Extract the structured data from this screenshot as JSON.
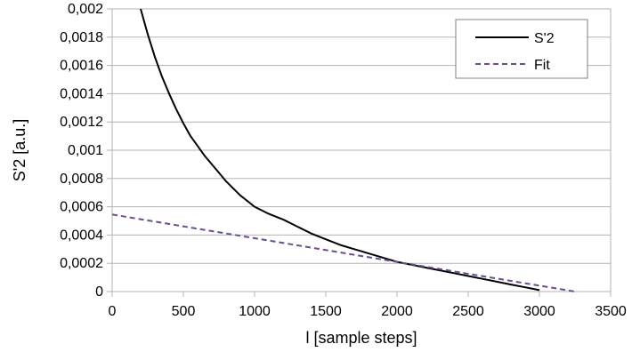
{
  "chart_data": {
    "type": "line",
    "xlabel": "l [sample steps]",
    "ylabel": "S'2 [a.u.]",
    "xlim": [
      0,
      3500
    ],
    "ylim": [
      0,
      0.002
    ],
    "x_ticks": [
      0,
      500,
      1000,
      1500,
      2000,
      2500,
      3000,
      3500
    ],
    "y_ticks": [
      0,
      0.0002,
      0.0004,
      0.0006,
      0.0008,
      0.001,
      0.0012,
      0.0014,
      0.0016,
      0.0018,
      0.002
    ],
    "x_tick_labels": [
      "0",
      "500",
      "1000",
      "1500",
      "2000",
      "2500",
      "3000",
      "3500"
    ],
    "y_tick_labels": [
      "0",
      "0,0002",
      "0,0004",
      "0,0006",
      "0,0008",
      "0,001",
      "0,0012",
      "0,0014",
      "0,0016",
      "0,0018",
      "0,002"
    ],
    "grid": "horizontal",
    "legend_position": "top-right",
    "series": [
      {
        "name": "S'2",
        "color": "#000000",
        "dash": "solid",
        "x": [
          200,
          250,
          300,
          350,
          400,
          450,
          500,
          550,
          600,
          650,
          700,
          750,
          800,
          850,
          900,
          950,
          1000,
          1100,
          1200,
          1300,
          1400,
          1500,
          1600,
          1700,
          1800,
          1900,
          2000,
          2100,
          2200,
          2300,
          2400,
          2500,
          2600,
          2700,
          2800,
          2900,
          3000
        ],
        "y": [
          0.002,
          0.00182,
          0.00166,
          0.00152,
          0.0014,
          0.00129,
          0.00119,
          0.0011,
          0.00103,
          0.00096,
          0.0009,
          0.00084,
          0.00078,
          0.00073,
          0.00068,
          0.00064,
          0.0006,
          0.00055,
          0.00051,
          0.00046,
          0.00041,
          0.00037,
          0.00033,
          0.0003,
          0.00027,
          0.00024,
          0.00021,
          0.00019,
          0.00017,
          0.00015,
          0.00013,
          0.00011,
          9e-05,
          7e-05,
          5e-05,
          3e-05,
          1e-05
        ]
      },
      {
        "name": "Fit",
        "color": "#6a4c93",
        "dash": "dashed",
        "x": [
          0,
          3250
        ],
        "y": [
          0.000545,
          0
        ]
      }
    ]
  }
}
